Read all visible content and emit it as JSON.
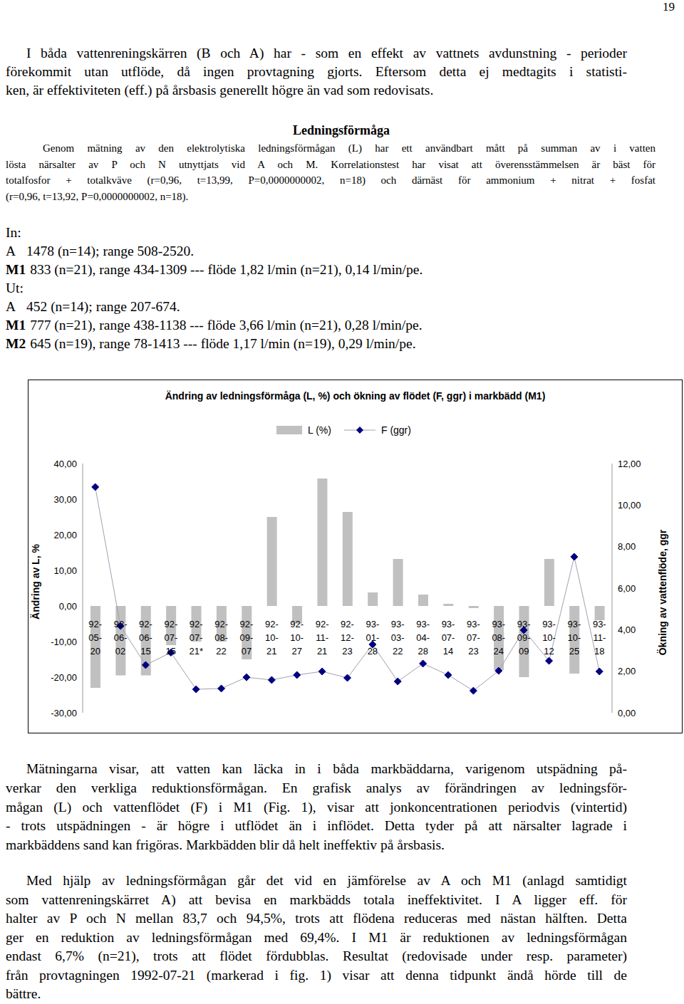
{
  "page_number": "19",
  "intro": {
    "lines": [
      "I båda vattenreningskärren (B och A) har - som en effekt av vattnets avdunstning - perioder",
      "förekommit utan utflöde, då ingen provtagning gjorts. Eftersom detta ej medtagits i statisti-",
      "ken, är effektiviteten (eff.) på årsbasis generellt högre än vad som redovisats."
    ]
  },
  "heading": "Ledningsförmåga",
  "method": {
    "lines": [
      "Genom mätning av den elektrolytiska ledningsförmågan (L) har ett användbart mått på summan av i vatten",
      "lösta närsalter av P och N utnyttjats vid A och M. Korrelationstest har visat att överensstämmelsen är bäst för",
      "totalfosfor + totalkväve (r=0,96,  t=13,99,  P=0,0000000002,  n=18) och därnäst för ammonium + nitrat + fosfat",
      "(r=0,96, t=13,92, P=0,0000000002, n=18)."
    ]
  },
  "measurements": [
    {
      "heading": "In:"
    },
    {
      "label": "A",
      "text": "1478 (n=14); range 508-2520."
    },
    {
      "label": "M1",
      "text": "833 (n=21), range 434-1309 --- flöde 1,82 l/min (n=21), 0,14 l/min/pe."
    },
    {
      "heading": "Ut:"
    },
    {
      "label": "A",
      "text": "452 (n=14); range 207-674."
    },
    {
      "label": "M1",
      "text": "777 (n=21), range 438-1138 --- flöde 3,66 l/min (n=21), 0,28 l/min/pe."
    },
    {
      "label": "M2",
      "text": "645 (n=19), range 78-1413 --- flöde 1,17 l/min (n=19), 0,29 l/min/pe."
    }
  ],
  "chart_data": {
    "type": "bar",
    "title": "Ändring av ledningsförmåga (L, %) och ökning av flödet (F, ggr) i markbädd (M1)",
    "y_label": "Ändring av L, %",
    "y2_label": "Ökning av vattenflöde, ggr",
    "categories": [
      "92-05-20",
      "92-06-02",
      "92-06-15",
      "92-07-15",
      "92-07-21*",
      "92-08-22",
      "92-09-07",
      "92-10-21",
      "92-10-27",
      "92-11-21",
      "92-12-23",
      "93-01-28",
      "93-03-22",
      "93-04-28",
      "93-07-14",
      "93-07-23",
      "93-08-24",
      "93-09-09",
      "93-10-12",
      "93-10-25",
      "93-11-18"
    ],
    "series": [
      {
        "name": "L (%)",
        "type": "bar",
        "color": "#c0c0c0",
        "values": [
          -23,
          -19.5,
          -19.5,
          -11,
          -10,
          -10,
          -15,
          25,
          -5,
          35.8,
          26.4,
          3.8,
          13.2,
          3.2,
          0.6,
          -0.6,
          -18,
          -20,
          13.2,
          -19,
          -4
        ]
      },
      {
        "name": "F (ggr)",
        "type": "line",
        "axis": "y2",
        "color": "#000080",
        "marker": "diamond",
        "values": [
          10.87,
          4.18,
          2.3,
          2.9,
          1.13,
          1.17,
          1.71,
          1.58,
          1.82,
          1.99,
          1.68,
          3.29,
          1.51,
          2.37,
          1.82,
          1.06,
          2.02,
          3.98,
          2.5,
          7.51,
          1.99
        ]
      }
    ],
    "ylim": [
      -30,
      40
    ],
    "yticks": [
      {
        "value": -30,
        "label": "-30,00"
      },
      {
        "value": -20,
        "label": "-20,00"
      },
      {
        "value": -10,
        "label": "-10,00"
      },
      {
        "value": 0,
        "label": "0,00"
      },
      {
        "value": 10,
        "label": "10,00"
      },
      {
        "value": 20,
        "label": "20,00"
      },
      {
        "value": 30,
        "label": "30,00"
      },
      {
        "value": 40,
        "label": "40,00"
      }
    ],
    "y2lim": [
      0,
      12
    ],
    "y2ticks": [
      {
        "value": 0,
        "label": "0,00"
      },
      {
        "value": 2,
        "label": "2,00"
      },
      {
        "value": 4,
        "label": "4,00"
      },
      {
        "value": 6,
        "label": "6,00"
      },
      {
        "value": 8,
        "label": "8,00"
      },
      {
        "value": 10,
        "label": "10,00"
      },
      {
        "value": 12,
        "label": "12,00"
      }
    ],
    "legend": "top",
    "grid": false
  },
  "discussion": [
    {
      "lines": [
        "Mätningarna visar, att vatten kan läcka in i båda markbäddarna, varigenom utspädning på-",
        "verkar den verkliga reduktionsförmågan. En grafisk analys av förändringen av ledningsför-",
        "mågan (L) och vattenflödet (F) i M1 (Fig. 1), visar att jonkoncentrationen periodvis (vintertid)",
        "- trots utspädningen - är högre i utflödet än i inflödet. Detta tyder på att närsalter lagrade i",
        "markbäddens sand kan  frigöras. Markbädden blir då helt ineffektiv på årsbasis."
      ]
    },
    {
      "lines": [
        "Med hjälp av ledningsförmågan går det vid en jämförelse av A och M1 (anlagd samtidigt",
        "som vattenreningskärret A) att bevisa en markbädds totala ineffektivitet. I A ligger eff. för",
        "halter av P och N mellan 83,7 och 94,5%, trots att flödena reduceras med nästan hälften. Detta",
        "ger en reduktion av ledningsförmågan med 69,4%. I M1 är reduktionen av ledningsförmågan",
        "endast 6,7% (n=21), trots att flödet fördubblas. Resultat (redovisade under resp. parameter)",
        "från provtagningen 1992-07-21 (markerad i fig. 1) visar att denna tidpunkt ändå hörde till de",
        "bättre."
      ]
    }
  ]
}
